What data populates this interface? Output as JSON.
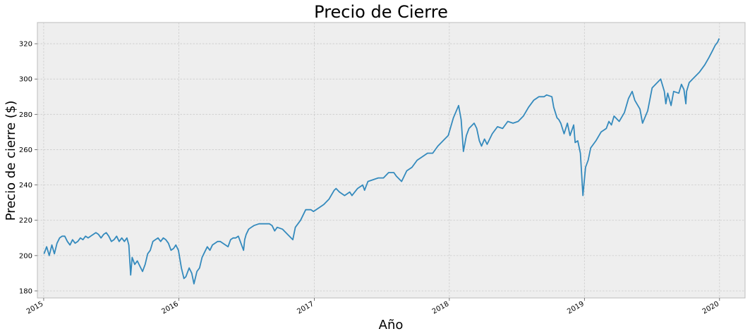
{
  "chart_data": {
    "type": "line",
    "title": "Precio de Cierre",
    "xlabel": "Año",
    "ylabel": "Precio de cierre ($)",
    "xlim": [
      "2014-12-15",
      "2020-03-10"
    ],
    "ylim": [
      176,
      332
    ],
    "grid": true,
    "x_ticks": [
      "2015-01-01",
      "2016-01-01",
      "2017-01-01",
      "2018-01-01",
      "2019-01-01",
      "2020-01-01"
    ],
    "x_tick_labels": [
      "2015",
      "2016",
      "2017",
      "2018",
      "2019",
      "2020"
    ],
    "y_ticks": [
      180,
      200,
      220,
      240,
      260,
      280,
      300,
      320
    ],
    "colors": {
      "line": "#348abd",
      "plot_bg": "#eeeeee",
      "spine": "#bcbcbc",
      "grid": "#cbcbcb"
    },
    "series": [
      {
        "x": [
          "2015-01-02",
          "2015-01-09",
          "2015-01-16",
          "2015-01-23",
          "2015-01-30",
          "2015-02-06",
          "2015-02-13",
          "2015-02-20",
          "2015-02-27",
          "2015-03-06",
          "2015-03-13",
          "2015-03-20",
          "2015-03-27",
          "2015-04-03",
          "2015-04-10",
          "2015-04-17",
          "2015-04-24",
          "2015-05-01",
          "2015-05-08",
          "2015-05-15",
          "2015-05-22",
          "2015-05-29",
          "2015-06-05",
          "2015-06-12",
          "2015-06-19",
          "2015-06-26",
          "2015-07-03",
          "2015-07-10",
          "2015-07-17",
          "2015-07-24",
          "2015-07-31",
          "2015-08-07",
          "2015-08-14",
          "2015-08-19",
          "2015-08-24",
          "2015-08-28",
          "2015-09-04",
          "2015-09-11",
          "2015-09-18",
          "2015-09-25",
          "2015-10-02",
          "2015-10-09",
          "2015-10-16",
          "2015-10-23",
          "2015-10-30",
          "2015-11-06",
          "2015-11-13",
          "2015-11-20",
          "2015-11-27",
          "2015-12-04",
          "2015-12-11",
          "2015-12-18",
          "2015-12-24",
          "2015-12-31",
          "2016-01-08",
          "2016-01-15",
          "2016-01-20",
          "2016-01-29",
          "2016-02-05",
          "2016-02-11",
          "2016-02-19",
          "2016-02-26",
          "2016-03-04",
          "2016-03-11",
          "2016-03-18",
          "2016-03-25",
          "2016-04-01",
          "2016-04-08",
          "2016-04-15",
          "2016-04-22",
          "2016-04-29",
          "2016-05-06",
          "2016-05-13",
          "2016-05-20",
          "2016-05-27",
          "2016-06-03",
          "2016-06-10",
          "2016-06-17",
          "2016-06-24",
          "2016-06-27",
          "2016-07-01",
          "2016-07-08",
          "2016-07-15",
          "2016-07-22",
          "2016-08-05",
          "2016-08-19",
          "2016-09-02",
          "2016-09-09",
          "2016-09-16",
          "2016-09-23",
          "2016-10-07",
          "2016-10-21",
          "2016-11-04",
          "2016-11-11",
          "2016-11-25",
          "2016-12-09",
          "2016-12-23",
          "2016-12-30",
          "2017-01-13",
          "2017-01-27",
          "2017-02-10",
          "2017-02-24",
          "2017-03-01",
          "2017-03-10",
          "2017-03-24",
          "2017-04-07",
          "2017-04-13",
          "2017-04-28",
          "2017-05-12",
          "2017-05-17",
          "2017-05-26",
          "2017-06-09",
          "2017-06-23",
          "2017-07-07",
          "2017-07-21",
          "2017-08-04",
          "2017-08-11",
          "2017-08-25",
          "2017-09-08",
          "2017-09-22",
          "2017-10-06",
          "2017-10-20",
          "2017-11-03",
          "2017-11-17",
          "2017-12-01",
          "2017-12-15",
          "2017-12-29",
          "2018-01-12",
          "2018-01-26",
          "2018-02-02",
          "2018-02-08",
          "2018-02-16",
          "2018-02-23",
          "2018-03-09",
          "2018-03-16",
          "2018-03-23",
          "2018-03-29",
          "2018-04-06",
          "2018-04-13",
          "2018-04-27",
          "2018-05-11",
          "2018-05-25",
          "2018-06-08",
          "2018-06-22",
          "2018-07-06",
          "2018-07-20",
          "2018-08-03",
          "2018-08-17",
          "2018-08-31",
          "2018-09-14",
          "2018-09-21",
          "2018-10-05",
          "2018-10-10",
          "2018-10-19",
          "2018-10-24",
          "2018-10-29",
          "2018-11-07",
          "2018-11-16",
          "2018-11-23",
          "2018-12-03",
          "2018-12-07",
          "2018-12-14",
          "2018-12-21",
          "2018-12-24",
          "2018-12-28",
          "2019-01-04",
          "2019-01-11",
          "2019-01-18",
          "2019-02-01",
          "2019-02-15",
          "2019-03-01",
          "2019-03-08",
          "2019-03-15",
          "2019-03-22",
          "2019-04-05",
          "2019-04-19",
          "2019-04-30",
          "2019-05-10",
          "2019-05-17",
          "2019-05-31",
          "2019-06-07",
          "2019-06-21",
          "2019-07-03",
          "2019-07-26",
          "2019-08-05",
          "2019-08-09",
          "2019-08-14",
          "2019-08-23",
          "2019-08-30",
          "2019-09-13",
          "2019-09-20",
          "2019-09-27",
          "2019-10-02",
          "2019-10-04",
          "2019-10-11",
          "2019-10-25",
          "2019-11-08",
          "2019-11-22",
          "2019-12-03",
          "2019-12-13",
          "2019-12-20",
          "2019-12-27",
          "2019-12-31"
        ],
        "values": [
          201,
          205,
          200,
          206,
          201,
          207,
          210,
          211,
          211,
          208,
          206,
          209,
          207,
          208,
          210,
          209,
          211,
          210,
          211,
          212,
          213,
          212,
          210,
          212,
          213,
          211,
          208,
          209,
          211,
          208,
          210,
          208,
          210,
          206,
          189,
          199,
          195,
          197,
          194,
          191,
          195,
          201,
          203,
          208,
          209,
          210,
          208,
          210,
          209,
          207,
          203,
          204,
          206,
          203,
          193,
          187,
          188,
          193,
          190,
          184,
          191,
          193,
          199,
          202,
          205,
          203,
          206,
          207,
          208,
          208,
          207,
          206,
          205,
          209,
          210,
          210,
          211,
          207,
          203,
          209,
          212,
          215,
          216,
          217,
          218,
          218,
          218,
          217,
          214,
          216,
          215,
          212,
          209,
          216,
          220,
          226,
          226,
          225,
          227,
          229,
          232,
          237,
          238,
          236,
          234,
          236,
          234,
          238,
          240,
          237,
          242,
          243,
          244,
          244,
          247,
          247,
          245,
          242,
          248,
          250,
          254,
          256,
          258,
          258,
          262,
          265,
          268,
          278,
          285,
          277,
          259,
          268,
          272,
          275,
          272,
          265,
          262,
          266,
          263,
          269,
          273,
          272,
          276,
          275,
          276,
          279,
          284,
          288,
          290,
          290,
          291,
          290,
          284,
          278,
          277,
          275,
          269,
          275,
          268,
          274,
          264,
          265,
          258,
          248,
          234,
          250,
          254,
          261,
          265,
          270,
          272,
          276,
          274,
          279,
          276,
          281,
          289,
          293,
          288,
          283,
          275,
          282,
          295,
          300,
          293,
          286,
          292,
          285,
          293,
          292,
          297,
          294,
          286,
          293,
          298,
          301,
          304,
          308,
          312,
          316,
          319,
          321,
          323
        ]
      }
    ]
  }
}
